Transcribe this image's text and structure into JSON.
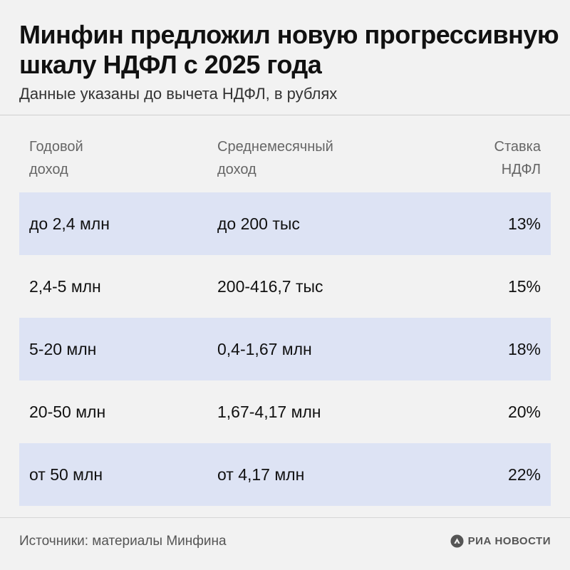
{
  "header": {
    "title": "Минфин предложил новую прогрессивную шкалу НДФЛ с 2025 года",
    "subtitle": "Данные указаны до вычета НДФЛ, в рублях"
  },
  "table": {
    "columns": [
      {
        "line1": "Годовой",
        "line2": "доход"
      },
      {
        "line1": "Среднемесячный",
        "line2": "доход"
      },
      {
        "line1": "Ставка",
        "line2": "НДФЛ"
      }
    ],
    "rows": [
      {
        "annual": "до 2,4 млн",
        "monthly": "до 200 тыс",
        "rate": "13%"
      },
      {
        "annual": "2,4-5 млн",
        "monthly": "200-416,7 тыс",
        "rate": "15%"
      },
      {
        "annual": "5-20 млн",
        "monthly": "0,4-1,67 млн",
        "rate": "18%"
      },
      {
        "annual": "20-50 млн",
        "monthly": "1,67-4,17 млн",
        "rate": "20%"
      },
      {
        "annual": "от 50 млн",
        "monthly": "от 4,17 млн",
        "rate": "22%"
      }
    ],
    "row_shading_color": "#dde3f4"
  },
  "footer": {
    "source": "Источники: материалы Минфина",
    "brand": "РИА НОВОСТИ",
    "brand_icon": "ria-novosti-logo-icon"
  }
}
